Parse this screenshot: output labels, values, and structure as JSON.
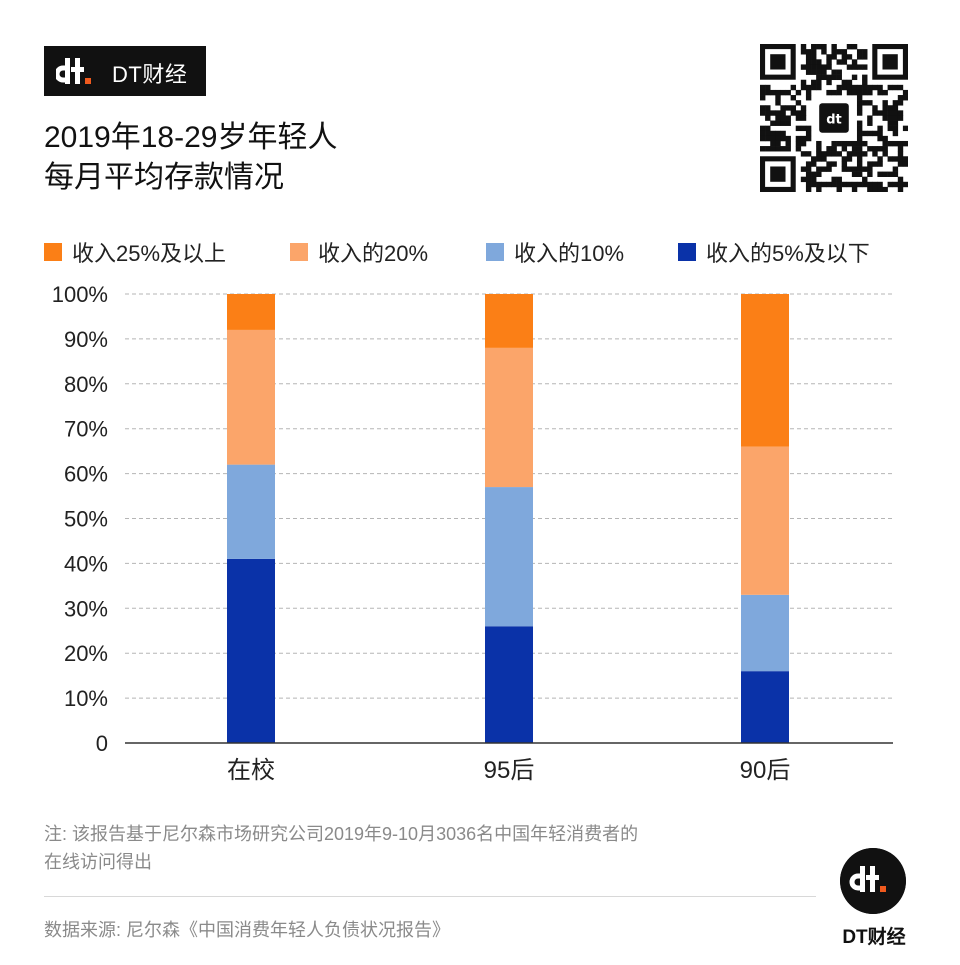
{
  "brand": {
    "name": "DT财经",
    "accent": "#f05a1e"
  },
  "title": {
    "line1": "2019年18-29岁年轻人",
    "line2": "每月平均存款情况"
  },
  "qr_code": {
    "icon": "qr-code-icon"
  },
  "chart_data": {
    "type": "bar",
    "stacked": true,
    "categories": [
      "在校",
      "95后",
      "90后"
    ],
    "series": [
      {
        "name": "收入的5%及以下",
        "color": "#0a32a8",
        "values": [
          41,
          26,
          16
        ]
      },
      {
        "name": "收入的10%",
        "color": "#7fa8dc",
        "values": [
          21,
          31,
          17
        ]
      },
      {
        "name": "收入的20%",
        "color": "#fba56a",
        "values": [
          30,
          31,
          33
        ]
      },
      {
        "name": "收入25%及以上",
        "color": "#fb7f16",
        "values": [
          8,
          12,
          34
        ]
      }
    ],
    "legend_order": [
      "收入25%及以上",
      "收入的20%",
      "收入的10%",
      "收入的5%及以下"
    ],
    "y_ticks": [
      "0",
      "10%",
      "20%",
      "30%",
      "40%",
      "50%",
      "60%",
      "70%",
      "80%",
      "90%",
      "100%"
    ],
    "ylim": [
      0,
      100
    ],
    "grid": true,
    "legend_position": "top"
  },
  "footer": {
    "note_line1": "注: 该报告基于尼尔森市场研究公司2019年9-10月3036名中国年轻消费者的",
    "note_line2": "在线访问得出",
    "source": "数据来源: 尼尔森《中国消费年轻人负债状况报告》"
  }
}
